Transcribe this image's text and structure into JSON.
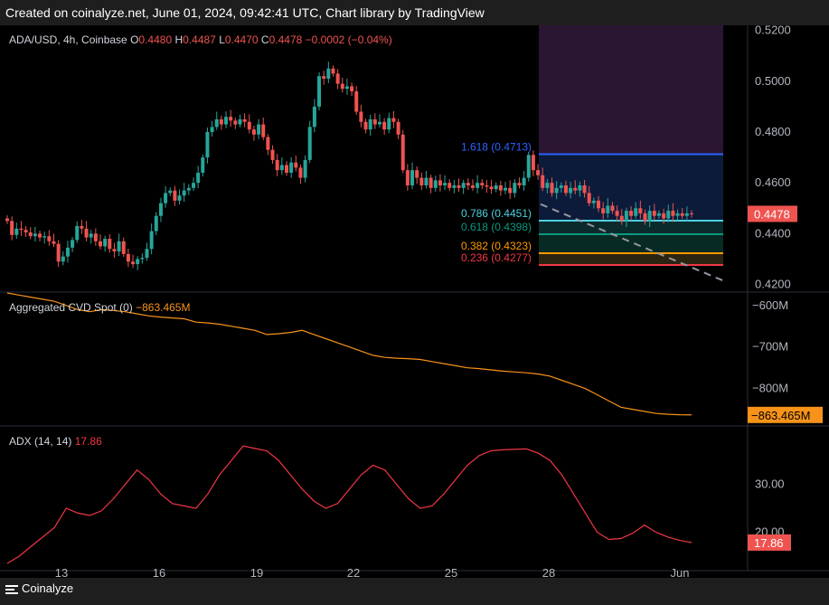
{
  "header": {
    "text": "Created on coinalyze.net, June 01, 2024, 09:42:41 UTC, Chart library by TradingView"
  },
  "footer": {
    "brand": "Coinalyze"
  },
  "colors": {
    "bull": "#26a69a",
    "bear": "#ef5350",
    "cvd_line": "#f7931a",
    "adx_line": "#f23645",
    "fib_blue": "#2962ff",
    "fib_teal": "#4dd0e1",
    "fib_green": "#089981",
    "fib_orange": "#ff9800",
    "fib_red": "#f23645",
    "trend_dash": "#9598a1"
  },
  "chart_data": [
    {
      "type": "candlestick",
      "title": "ADA/USD, 4h, Coinbase",
      "ohlc_legend": {
        "o_label": "O",
        "o": "0.4480",
        "h_label": "H",
        "h": "0.4487",
        "l_label": "L",
        "l": "0.4470",
        "c_label": "C",
        "c": "0.4478",
        "change": "−0.0002 (−0.04%)"
      },
      "price_tag": "0.4478",
      "ylim": [
        0.417,
        0.522
      ],
      "y_ticks": [
        "0.5200",
        "0.5000",
        "0.4800",
        "0.4600",
        "0.4400",
        "0.4200"
      ],
      "y_tick_values": [
        0.52,
        0.5,
        0.48,
        0.46,
        0.44,
        0.42
      ],
      "candles": [
        0.445,
        0.4395,
        0.442,
        0.4415,
        0.4405,
        0.439,
        0.44,
        0.4385,
        0.439,
        0.437,
        0.436,
        0.429,
        0.431,
        0.4345,
        0.4375,
        0.443,
        0.442,
        0.4385,
        0.44,
        0.437,
        0.435,
        0.438,
        0.434,
        0.433,
        0.437,
        0.432,
        0.429,
        0.428,
        0.43,
        0.4305,
        0.434,
        0.441,
        0.447,
        0.452,
        0.456,
        0.457,
        0.453,
        0.455,
        0.457,
        0.458,
        0.46,
        0.464,
        0.47,
        0.48,
        0.482,
        0.485,
        0.483,
        0.486,
        0.4845,
        0.483,
        0.485,
        0.484,
        0.481,
        0.479,
        0.483,
        0.478,
        0.473,
        0.469,
        0.465,
        0.467,
        0.464,
        0.468,
        0.466,
        0.462,
        0.469,
        0.482,
        0.49,
        0.502,
        0.501,
        0.505,
        0.503,
        0.499,
        0.497,
        0.498,
        0.496,
        0.488,
        0.484,
        0.481,
        0.485,
        0.483,
        0.484,
        0.481,
        0.4855,
        0.484,
        0.479,
        0.465,
        0.459,
        0.465,
        0.462,
        0.459,
        0.462,
        0.458,
        0.461,
        0.459,
        0.46,
        0.458,
        0.459,
        0.458,
        0.46,
        0.459,
        0.458,
        0.46,
        0.459,
        0.4585,
        0.4575,
        0.459,
        0.457,
        0.458,
        0.456,
        0.46,
        0.459,
        0.462,
        0.471,
        0.465,
        0.463,
        0.458,
        0.46,
        0.456,
        0.458,
        0.459,
        0.456,
        0.458,
        0.457,
        0.459,
        0.456,
        0.452,
        0.453,
        0.45,
        0.448,
        0.451,
        0.449,
        0.447,
        0.445,
        0.449,
        0.447,
        0.45,
        0.448,
        0.445,
        0.449,
        0.447,
        0.448,
        0.446,
        0.449,
        0.447,
        0.448,
        0.447,
        0.448,
        0.4478
      ]
    },
    {
      "type": "fibonacci",
      "levels": [
        {
          "label": "1.618 (0.4713)",
          "value": 0.4713,
          "color": "#2962ff"
        },
        {
          "label": "0.786 (0.4451)",
          "value": 0.4451,
          "color": "#4dd0e1"
        },
        {
          "label": "0.618 (0.4398)",
          "value": 0.4398,
          "color": "#089981"
        },
        {
          "label": "0.382 (0.4323)",
          "value": 0.4323,
          "color": "#ff9800"
        },
        {
          "label": "0.236 (0.4277)",
          "value": 0.4277,
          "color": "#f23645"
        }
      ]
    },
    {
      "type": "line",
      "title": "Aggregated CVD Spot (0)",
      "last_value": "−863.465M",
      "price_tag": "−863.465M",
      "ylim": [
        -890,
        -570
      ],
      "y_ticks": [
        "−600M",
        "−700M",
        "−800M"
      ],
      "y_tick_values": [
        -600,
        -700,
        -800
      ],
      "values": [
        -570,
        -575,
        -580,
        -585,
        -590,
        -600,
        -610,
        -615,
        -610,
        -612,
        -615,
        -620,
        -625,
        -628,
        -630,
        -632,
        -640,
        -642,
        -645,
        -650,
        -655,
        -660,
        -670,
        -668,
        -665,
        -660,
        -670,
        -680,
        -690,
        -700,
        -710,
        -720,
        -725,
        -727,
        -728,
        -730,
        -735,
        -740,
        -745,
        -750,
        -752,
        -755,
        -758,
        -760,
        -762,
        -765,
        -770,
        -780,
        -790,
        -800,
        -815,
        -830,
        -845,
        -850,
        -855,
        -860,
        -862,
        -863,
        -863.465
      ]
    },
    {
      "type": "line",
      "title": "ADX (14, 14)",
      "last_value": "17.86",
      "price_tag": "17.86",
      "ylim": [
        12,
        42
      ],
      "y_ticks": [
        "30.00",
        "20.00"
      ],
      "y_tick_values": [
        30,
        20
      ],
      "values": [
        13.5,
        15,
        17,
        19,
        21,
        25,
        24,
        23.5,
        24.5,
        27,
        30,
        33,
        31,
        28,
        26,
        25.5,
        25,
        28,
        32,
        35,
        38,
        37.5,
        37,
        35,
        32,
        29,
        26.5,
        25,
        26,
        29,
        32,
        34,
        33,
        30,
        27,
        25,
        25.5,
        28,
        31,
        34,
        36,
        37,
        37.2,
        37.3,
        37.4,
        36.5,
        35,
        32,
        28,
        24,
        20,
        18.5,
        18.7,
        19.8,
        21.5,
        20,
        19,
        18.3,
        17.86
      ]
    }
  ],
  "x_axis": {
    "ticks": [
      "13",
      "16",
      "19",
      "22",
      "25",
      "28",
      "Jun"
    ]
  }
}
